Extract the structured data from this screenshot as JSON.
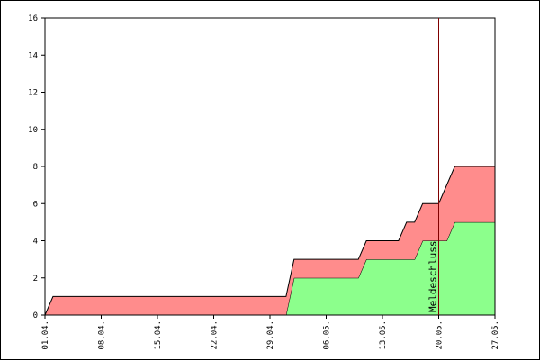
{
  "chart_data": {
    "type": "stacked-area",
    "categories": [
      "01.04.",
      null,
      null,
      null,
      null,
      null,
      null,
      "08.04.",
      null,
      null,
      null,
      null,
      null,
      null,
      "15.04.",
      null,
      null,
      null,
      null,
      null,
      null,
      "22.04.",
      null,
      null,
      null,
      null,
      null,
      null,
      "29.04.",
      null,
      null,
      null,
      null,
      null,
      null,
      "06.05.",
      null,
      null,
      null,
      null,
      null,
      null,
      "13.05.",
      null,
      null,
      null,
      null,
      null,
      null,
      "20.05.",
      null,
      null,
      null,
      null,
      null,
      null,
      "27.05."
    ],
    "series": [
      {
        "color": "#8cff8c",
        "values": [
          0,
          0,
          0,
          0,
          0,
          0,
          0,
          0,
          0,
          0,
          0,
          0,
          0,
          0,
          0,
          0,
          0,
          0,
          0,
          0,
          0,
          0,
          0,
          0,
          0,
          0,
          0,
          0,
          0,
          0,
          0,
          2,
          2,
          2,
          2,
          2,
          2,
          2,
          2,
          2,
          3,
          3,
          3,
          3,
          3,
          3,
          3,
          4,
          4,
          4,
          4,
          5,
          5,
          5,
          5,
          5,
          5
        ]
      },
      {
        "color": "#ff8c8c",
        "values": [
          0,
          1,
          1,
          1,
          1,
          1,
          1,
          1,
          1,
          1,
          1,
          1,
          1,
          1,
          1,
          1,
          1,
          1,
          1,
          1,
          1,
          1,
          1,
          1,
          1,
          1,
          1,
          1,
          1,
          1,
          1,
          1,
          1,
          1,
          1,
          1,
          1,
          1,
          1,
          1,
          1,
          1,
          1,
          1,
          1,
          2,
          2,
          2,
          2,
          2,
          3,
          3,
          3,
          3,
          3,
          3,
          3
        ]
      }
    ],
    "ylim": [
      0,
      16
    ],
    "yticks": [
      0,
      2,
      4,
      6,
      8,
      10,
      12,
      14,
      16
    ],
    "marker": {
      "label": "Meldeschluss",
      "category": "20.05.",
      "color": "#800000"
    }
  }
}
